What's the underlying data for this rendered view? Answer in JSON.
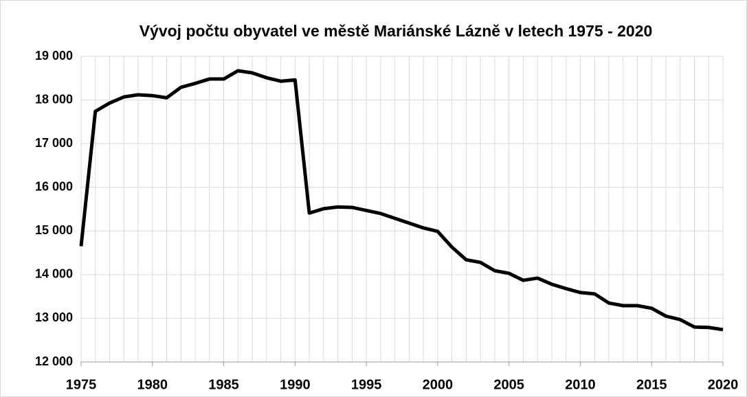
{
  "chart_data": {
    "type": "line",
    "title": "Vývoj počtu obyvatel ve městě Mariánské Lázně v letech 1975 - 2020",
    "x": [
      1975,
      1976,
      1977,
      1978,
      1979,
      1980,
      1981,
      1982,
      1983,
      1984,
      1985,
      1986,
      1987,
      1988,
      1989,
      1990,
      1991,
      1992,
      1993,
      1994,
      1995,
      1996,
      1997,
      1998,
      1999,
      2000,
      2001,
      2002,
      2003,
      2004,
      2005,
      2006,
      2007,
      2008,
      2009,
      2010,
      2011,
      2012,
      2013,
      2014,
      2015,
      2016,
      2017,
      2018,
      2019,
      2020
    ],
    "values": [
      14650,
      17740,
      17930,
      18070,
      18120,
      18100,
      18050,
      18290,
      18380,
      18480,
      18480,
      18670,
      18620,
      18510,
      18430,
      18460,
      15410,
      15510,
      15550,
      15540,
      15470,
      15400,
      15290,
      15180,
      15070,
      14990,
      14630,
      14340,
      14280,
      14090,
      14030,
      13870,
      13920,
      13780,
      13680,
      13590,
      13560,
      13350,
      13290,
      13290,
      13230,
      13050,
      12970,
      12800,
      12790,
      12740
    ],
    "color": "#000000",
    "xlim": [
      1975,
      2020
    ],
    "xticks": [
      1975,
      1980,
      1985,
      1990,
      1995,
      2000,
      2005,
      2010,
      2015,
      2020
    ],
    "ylim": [
      12000,
      19000
    ],
    "yticks": [
      {
        "value": 12000,
        "label": "12 000"
      },
      {
        "value": 13000,
        "label": "13 000"
      },
      {
        "value": 14000,
        "label": "14 000"
      },
      {
        "value": 15000,
        "label": "15 000"
      },
      {
        "value": 16000,
        "label": "16 000"
      },
      {
        "value": 17000,
        "label": "17 000"
      },
      {
        "value": 18000,
        "label": "18 000"
      },
      {
        "value": 19000,
        "label": "19 000"
      }
    ],
    "grid": true
  }
}
